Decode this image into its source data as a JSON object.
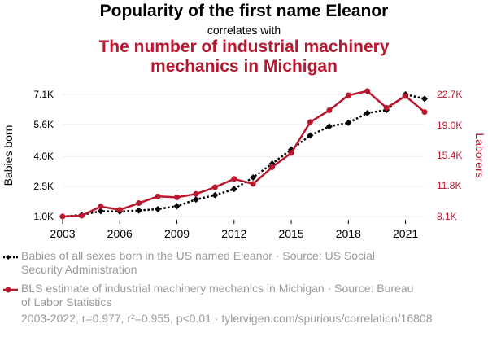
{
  "header": {
    "title": "Popularity of the first name Eleanor",
    "subtitle": "correlates with",
    "title2_line1": "The number of industrial machinery",
    "title2_line2": "mechanics in Michigan"
  },
  "colors": {
    "series1": "#000000",
    "series2": "#b9172e",
    "muted": "#9a9a9a",
    "grid": "#eeeeee"
  },
  "chart_data": {
    "type": "line",
    "x": [
      2003,
      2004,
      2005,
      2006,
      2007,
      2008,
      2009,
      2010,
      2011,
      2012,
      2013,
      2014,
      2015,
      2016,
      2017,
      2018,
      2019,
      2020,
      2021,
      2022
    ],
    "x_ticks": [
      "2003",
      "2006",
      "2009",
      "2012",
      "2015",
      "2018",
      "2021"
    ],
    "xlim": [
      2003,
      2022
    ],
    "left_axis": {
      "label": "Babies born",
      "ticks": [
        1000,
        2500,
        4000,
        5600,
        7100
      ],
      "tick_labels": [
        "1.0K",
        "2.5K",
        "4.0K",
        "5.6K",
        "7.1K"
      ],
      "ylim": [
        1000,
        7100
      ]
    },
    "right_axis": {
      "label": "Laborers",
      "ticks": [
        8100,
        11800,
        15400,
        19000,
        22700
      ],
      "tick_labels": [
        "8.1K",
        "11.8K",
        "15.4K",
        "19.0K",
        "22.7K"
      ],
      "ylim": [
        8100,
        22700
      ]
    },
    "series": [
      {
        "name": "Babies of all sexes born in the US named Eleanor",
        "axis": "left",
        "style": "dotted",
        "marker": "diamond",
        "values": [
          1000,
          1080,
          1270,
          1250,
          1300,
          1370,
          1520,
          1850,
          2070,
          2370,
          2950,
          3640,
          4350,
          5050,
          5500,
          5680,
          6170,
          6320,
          7100,
          6880
        ]
      },
      {
        "name": "BLS estimate of industrial machinery mechanics in Michigan",
        "axis": "right",
        "style": "solid",
        "marker": "circle",
        "values": [
          8100,
          8200,
          9300,
          8900,
          9700,
          10500,
          10400,
          10800,
          11600,
          12600,
          12000,
          14000,
          15700,
          19400,
          20800,
          22600,
          23100,
          21100,
          22500,
          20600
        ]
      }
    ],
    "legend": {
      "placement": "bottom",
      "entries": [
        {
          "line1": "Babies of all sexes born in the US named Eleanor · Source: US Social",
          "line2": "Security Administration"
        },
        {
          "line1": "BLS estimate of industrial machinery mechanics in Michigan · Source: Bureau",
          "line2": "of Labor Statistics"
        }
      ]
    },
    "footer": "2003-2022, r=0.977, r²=0.955, p<0.01 · tylervigen.com/spurious/correlation/16808",
    "grid": true
  }
}
